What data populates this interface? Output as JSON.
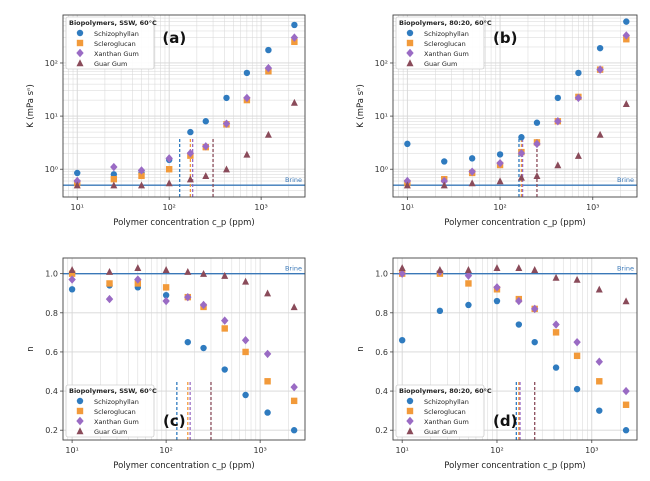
{
  "colors": {
    "Schizophyllan": "#2f7bbf",
    "Scleroglucan": "#f29a3a",
    "Xanthan Gum": "#9a6bc4",
    "Guar Gum": "#8a4b5a",
    "brine": "#3a78b8",
    "grid": "#d6d6d6"
  },
  "chart_data": [
    {
      "id": "a",
      "type": "scatter",
      "panel_label": "(a)",
      "legend_title": "Biopolymers, SSW, 60°C",
      "xlabel": "Polymer concentration c_p (ppm)",
      "ylabel": "K (mPa sⁿ)",
      "xscale": "log",
      "yscale": "log",
      "xlim": [
        7,
        3000
      ],
      "ylim": [
        0.3,
        800
      ],
      "xticks": [
        {
          "v": 10,
          "label": "10¹"
        },
        {
          "v": 100,
          "label": "10²"
        },
        {
          "v": 1000,
          "label": "10³"
        }
      ],
      "yticks": [
        {
          "v": 1,
          "label": "10⁰"
        },
        {
          "v": 10,
          "label": "10¹"
        },
        {
          "v": 100,
          "label": "10²"
        }
      ],
      "hline": {
        "y": 0.5,
        "label": "Brine"
      },
      "vlines": [
        {
          "x": 130,
          "series": "Schizophyllan"
        },
        {
          "x": 170,
          "series": "Scleroglucan"
        },
        {
          "x": 180,
          "series": "Xanthan Gum"
        },
        {
          "x": 300,
          "series": "Guar Gum"
        }
      ],
      "series": [
        {
          "name": "Schizophyllan",
          "marker": "circle",
          "x": [
            10,
            25,
            50,
            100,
            170,
            250,
            420,
            700,
            1200,
            2300
          ],
          "y": [
            0.85,
            0.8,
            0.85,
            1.5,
            5,
            8,
            22,
            65,
            175,
            520
          ]
        },
        {
          "name": "Scleroglucan",
          "marker": "square",
          "x": [
            10,
            25,
            50,
            100,
            170,
            250,
            420,
            700,
            1200,
            2300
          ],
          "y": [
            0.55,
            0.65,
            0.75,
            1.0,
            1.8,
            2.6,
            7,
            20,
            70,
            250
          ]
        },
        {
          "name": "Xanthan Gum",
          "marker": "diamond",
          "x": [
            10,
            25,
            50,
            100,
            170,
            250,
            420,
            700,
            1200,
            2300
          ],
          "y": [
            0.6,
            1.1,
            0.95,
            1.6,
            2.0,
            2.7,
            7.2,
            22,
            80,
            300
          ]
        },
        {
          "name": "Guar Gum",
          "marker": "triangle",
          "x": [
            10,
            25,
            50,
            100,
            170,
            250,
            420,
            700,
            1200,
            2300
          ],
          "y": [
            0.5,
            0.5,
            0.5,
            0.55,
            0.65,
            0.75,
            1.0,
            1.9,
            4.5,
            18
          ]
        }
      ]
    },
    {
      "id": "b",
      "type": "scatter",
      "panel_label": "(b)",
      "legend_title": "Biopolymers, 80:20, 60°C",
      "xlabel": "Polymer concentration c_p (ppm)",
      "ylabel": "K (mPa sⁿ)",
      "xscale": "log",
      "yscale": "log",
      "xlim": [
        7,
        3000
      ],
      "ylim": [
        0.3,
        800
      ],
      "xticks": [
        {
          "v": 10,
          "label": "10¹"
        },
        {
          "v": 100,
          "label": "10²"
        },
        {
          "v": 1000,
          "label": "10³"
        }
      ],
      "yticks": [
        {
          "v": 1,
          "label": "10⁰"
        },
        {
          "v": 10,
          "label": "10¹"
        },
        {
          "v": 100,
          "label": "10²"
        }
      ],
      "hline": {
        "y": 0.5,
        "label": "Brine"
      },
      "vlines": [
        {
          "x": 160,
          "series": "Schizophyllan"
        },
        {
          "x": 170,
          "series": "Scleroglucan"
        },
        {
          "x": 175,
          "series": "Xanthan Gum"
        },
        {
          "x": 250,
          "series": "Guar Gum"
        }
      ],
      "series": [
        {
          "name": "Schizophyllan",
          "marker": "circle",
          "x": [
            10,
            25,
            50,
            100,
            170,
            250,
            420,
            700,
            1200,
            2300
          ],
          "y": [
            3,
            1.4,
            1.6,
            1.9,
            4,
            7.5,
            22,
            65,
            190,
            600
          ]
        },
        {
          "name": "Scleroglucan",
          "marker": "square",
          "x": [
            10,
            25,
            50,
            100,
            170,
            250,
            420,
            700,
            1200,
            2300
          ],
          "y": [
            0.55,
            0.65,
            0.85,
            1.2,
            2.1,
            3.2,
            8,
            23,
            75,
            280
          ]
        },
        {
          "name": "Xanthan Gum",
          "marker": "diamond",
          "x": [
            10,
            25,
            50,
            100,
            170,
            250,
            420,
            700,
            1200,
            2300
          ],
          "y": [
            0.6,
            0.6,
            0.9,
            1.3,
            2.0,
            3.0,
            8,
            22,
            75,
            330
          ]
        },
        {
          "name": "Guar Gum",
          "marker": "triangle",
          "x": [
            10,
            25,
            50,
            100,
            170,
            250,
            420,
            700,
            1200,
            2300
          ],
          "y": [
            0.5,
            0.5,
            0.55,
            0.6,
            0.7,
            0.75,
            1.2,
            1.8,
            4.5,
            17
          ]
        }
      ]
    },
    {
      "id": "c",
      "type": "scatter",
      "panel_label": "(c)",
      "legend_title": "Biopolymers, SSW, 60°C",
      "xlabel": "Polymer concentration c_p (ppm)",
      "ylabel": "n",
      "xscale": "log",
      "yscale": "linear",
      "xlim": [
        8,
        3000
      ],
      "ylim": [
        0.15,
        1.08
      ],
      "xticks": [
        {
          "v": 10,
          "label": "10¹"
        },
        {
          "v": 100,
          "label": "10²"
        },
        {
          "v": 1000,
          "label": "10³"
        }
      ],
      "yticks": [
        {
          "v": 0.2,
          "label": "0.2"
        },
        {
          "v": 0.4,
          "label": "0.4"
        },
        {
          "v": 0.6,
          "label": "0.6"
        },
        {
          "v": 0.8,
          "label": "0.8"
        },
        {
          "v": 1.0,
          "label": "1.0"
        }
      ],
      "hline": {
        "y": 1.0,
        "label": "Brine"
      },
      "vlines": [
        {
          "x": 130,
          "series": "Schizophyllan"
        },
        {
          "x": 170,
          "series": "Scleroglucan"
        },
        {
          "x": 180,
          "series": "Xanthan Gum"
        },
        {
          "x": 300,
          "series": "Guar Gum"
        }
      ],
      "series": [
        {
          "name": "Schizophyllan",
          "marker": "circle",
          "x": [
            10,
            25,
            50,
            100,
            170,
            250,
            420,
            700,
            1200,
            2300
          ],
          "y": [
            0.92,
            0.94,
            0.93,
            0.89,
            0.65,
            0.62,
            0.51,
            0.38,
            0.29,
            0.2
          ]
        },
        {
          "name": "Scleroglucan",
          "marker": "square",
          "x": [
            10,
            25,
            50,
            100,
            170,
            250,
            420,
            700,
            1200,
            2300
          ],
          "y": [
            1.0,
            0.95,
            0.95,
            0.93,
            0.88,
            0.83,
            0.72,
            0.6,
            0.45,
            0.35
          ]
        },
        {
          "name": "Xanthan Gum",
          "marker": "diamond",
          "x": [
            10,
            25,
            50,
            100,
            170,
            250,
            420,
            700,
            1200,
            2300
          ],
          "y": [
            0.97,
            0.87,
            0.97,
            0.86,
            0.88,
            0.84,
            0.76,
            0.66,
            0.59,
            0.42
          ]
        },
        {
          "name": "Guar Gum",
          "marker": "triangle",
          "x": [
            10,
            25,
            50,
            100,
            170,
            250,
            420,
            700,
            1200,
            2300
          ],
          "y": [
            1.02,
            1.01,
            1.03,
            1.02,
            1.01,
            1.0,
            0.99,
            0.96,
            0.9,
            0.83
          ]
        }
      ]
    },
    {
      "id": "d",
      "type": "scatter",
      "panel_label": "(d)",
      "legend_title": "Biopolymers, 80:20, 60°C",
      "xlabel": "Polymer concentration c_p (ppm)",
      "ylabel": "n",
      "xscale": "log",
      "yscale": "linear",
      "xlim": [
        8,
        3000
      ],
      "ylim": [
        0.15,
        1.08
      ],
      "xticks": [
        {
          "v": 10,
          "label": "10¹"
        },
        {
          "v": 100,
          "label": "10²"
        },
        {
          "v": 1000,
          "label": "10³"
        }
      ],
      "yticks": [
        {
          "v": 0.2,
          "label": "0.2"
        },
        {
          "v": 0.4,
          "label": "0.4"
        },
        {
          "v": 0.6,
          "label": "0.6"
        },
        {
          "v": 0.8,
          "label": "0.8"
        },
        {
          "v": 1.0,
          "label": "1.0"
        }
      ],
      "hline": {
        "y": 1.0,
        "label": "Brine"
      },
      "vlines": [
        {
          "x": 160,
          "series": "Schizophyllan"
        },
        {
          "x": 170,
          "series": "Scleroglucan"
        },
        {
          "x": 175,
          "series": "Xanthan Gum"
        },
        {
          "x": 250,
          "series": "Guar Gum"
        }
      ],
      "series": [
        {
          "name": "Schizophyllan",
          "marker": "circle",
          "x": [
            10,
            25,
            50,
            100,
            170,
            250,
            420,
            700,
            1200,
            2300
          ],
          "y": [
            0.66,
            0.81,
            0.84,
            0.86,
            0.74,
            0.65,
            0.52,
            0.41,
            0.3,
            0.2
          ]
        },
        {
          "name": "Scleroglucan",
          "marker": "square",
          "x": [
            10,
            25,
            50,
            100,
            170,
            250,
            420,
            700,
            1200,
            2300
          ],
          "y": [
            1.0,
            1.0,
            0.95,
            0.92,
            0.87,
            0.82,
            0.7,
            0.58,
            0.45,
            0.33
          ]
        },
        {
          "name": "Xanthan Gum",
          "marker": "diamond",
          "x": [
            10,
            25,
            50,
            100,
            170,
            250,
            420,
            700,
            1200,
            2300
          ],
          "y": [
            1.0,
            1.01,
            0.99,
            0.93,
            0.86,
            0.82,
            0.74,
            0.65,
            0.55,
            0.4
          ]
        },
        {
          "name": "Guar Gum",
          "marker": "triangle",
          "x": [
            10,
            25,
            50,
            100,
            170,
            250,
            420,
            700,
            1200,
            2300
          ],
          "y": [
            1.03,
            1.02,
            1.02,
            1.03,
            1.03,
            1.02,
            0.98,
            0.97,
            0.92,
            0.86
          ]
        }
      ]
    }
  ]
}
